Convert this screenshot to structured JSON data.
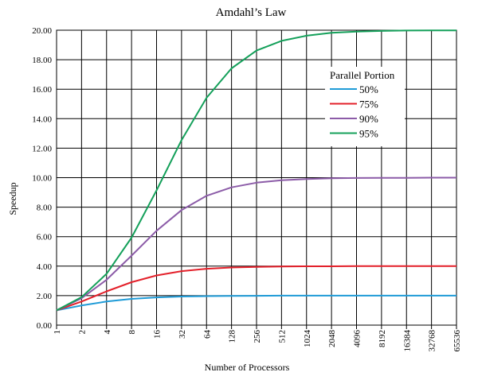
{
  "chart_data": {
    "type": "line",
    "title": "Amdahl’s Law",
    "xlabel": "Number of Processors",
    "ylabel": "Speedup",
    "x": [
      "1",
      "2",
      "4",
      "8",
      "16",
      "32",
      "64",
      "128",
      "256",
      "512",
      "1024",
      "2048",
      "4096",
      "8192",
      "16384",
      "32768",
      "65536"
    ],
    "ylim": [
      0,
      20
    ],
    "yticks": [
      "0.00",
      "2.00",
      "4.00",
      "6.00",
      "8.00",
      "10.00",
      "12.00",
      "14.00",
      "16.00",
      "18.00",
      "20.00"
    ],
    "grid": true,
    "legend": {
      "title": "Parallel Portion",
      "placement": "top-right"
    },
    "series": [
      {
        "name": "50%",
        "color": "#1f9bd7",
        "values": [
          1.0,
          1.33,
          1.6,
          1.78,
          1.88,
          1.94,
          1.97,
          1.98,
          1.99,
          2.0,
          2.0,
          2.0,
          2.0,
          2.0,
          2.0,
          2.0,
          2.0
        ]
      },
      {
        "name": "75%",
        "color": "#e3202a",
        "values": [
          1.0,
          1.6,
          2.29,
          2.91,
          3.37,
          3.66,
          3.82,
          3.91,
          3.95,
          3.98,
          3.99,
          3.99,
          4.0,
          4.0,
          4.0,
          4.0,
          4.0
        ]
      },
      {
        "name": "90%",
        "color": "#8c5ca8",
        "values": [
          1.0,
          1.82,
          3.08,
          4.71,
          6.4,
          7.8,
          8.77,
          9.34,
          9.66,
          9.83,
          9.91,
          9.96,
          9.98,
          9.99,
          9.99,
          10.0,
          10.0
        ]
      },
      {
        "name": "95%",
        "color": "#14a05a",
        "values": [
          1.0,
          1.9,
          3.48,
          5.93,
          9.14,
          12.55,
          15.42,
          17.41,
          18.62,
          19.28,
          19.63,
          19.82,
          19.91,
          19.95,
          19.98,
          19.99,
          19.99
        ]
      }
    ]
  }
}
